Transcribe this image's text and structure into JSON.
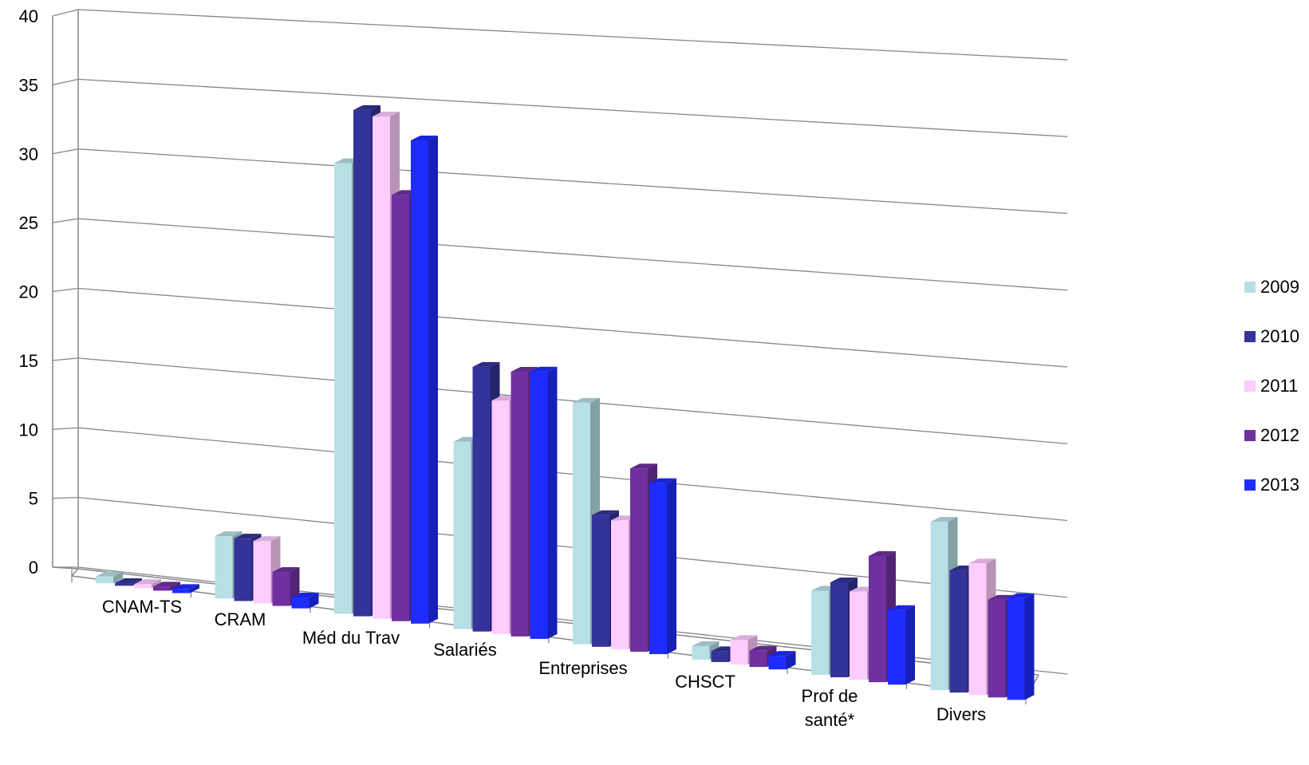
{
  "chart_data": {
    "type": "bar",
    "categories": [
      "CNAM-TS",
      "CRAM",
      "Méd du Trav",
      "Salariés",
      "Entreprises",
      "CHSCT",
      "Prof de santé*",
      "Divers"
    ],
    "y_ticks": [
      "0",
      "5",
      "10",
      "15",
      "20",
      "25",
      "30",
      "35",
      "40"
    ],
    "ylim": [
      0,
      40
    ],
    "grid": true,
    "legend_position": "right",
    "series": [
      {
        "name": "2009",
        "color": "#b7e0e6",
        "values": [
          0.5,
          4.6,
          33.2,
          13.8,
          17.8,
          1.0,
          6.2,
          12.4
        ]
      },
      {
        "name": "2010",
        "color": "#333399",
        "values": [
          0.2,
          4.6,
          37.3,
          19.5,
          9.7,
          0.8,
          7.0,
          9.0
        ]
      },
      {
        "name": "2011",
        "color": "#ffccff",
        "values": [
          0.3,
          4.6,
          37.0,
          17.2,
          9.5,
          1.8,
          6.5,
          9.7
        ]
      },
      {
        "name": "2012",
        "color": "#7030a0",
        "values": [
          0.3,
          2.5,
          31.4,
          19.5,
          13.5,
          1.2,
          9.3,
          7.2
        ]
      },
      {
        "name": "2013",
        "color": "#1f2cff",
        "values": [
          0.3,
          0.8,
          35.6,
          19.7,
          12.6,
          1.0,
          5.5,
          7.5
        ]
      }
    ]
  }
}
